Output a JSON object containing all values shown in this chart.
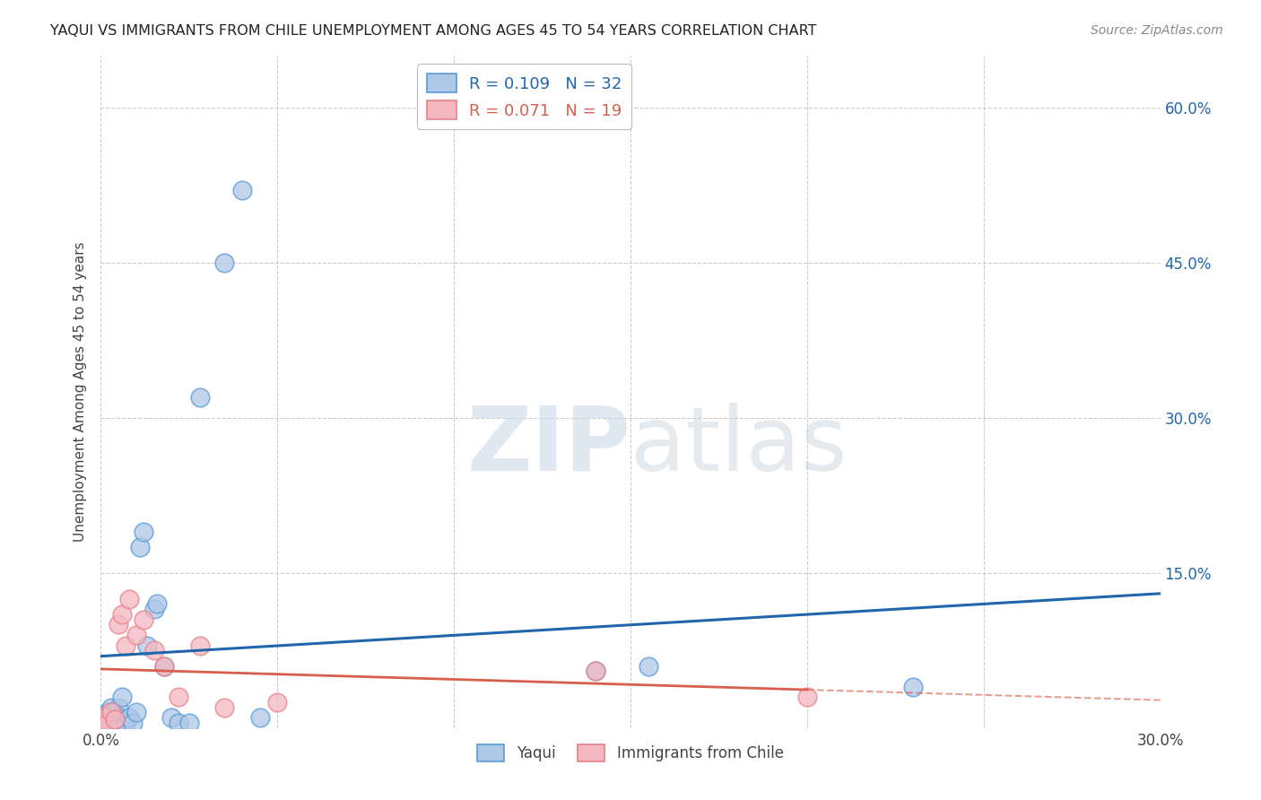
{
  "title": "YAQUI VS IMMIGRANTS FROM CHILE UNEMPLOYMENT AMONG AGES 45 TO 54 YEARS CORRELATION CHART",
  "source": "Source: ZipAtlas.com",
  "ylabel": "Unemployment Among Ages 45 to 54 years",
  "xlim": [
    0.0,
    0.3
  ],
  "ylim": [
    0.0,
    0.65
  ],
  "xtick_positions": [
    0.0,
    0.05,
    0.1,
    0.15,
    0.2,
    0.25,
    0.3
  ],
  "xticklabels": [
    "0.0%",
    "",
    "",
    "",
    "",
    "",
    "30.0%"
  ],
  "ytick_positions": [
    0.0,
    0.15,
    0.3,
    0.45,
    0.6
  ],
  "yticklabels": [
    "",
    "15.0%",
    "30.0%",
    "45.0%",
    "60.0%"
  ],
  "yaqui_R": 0.109,
  "yaqui_N": 32,
  "chile_R": 0.071,
  "chile_N": 19,
  "yaqui_color": "#aec8e8",
  "chile_color": "#f4b8c1",
  "yaqui_edge_color": "#5b9bd5",
  "chile_edge_color": "#e8828a",
  "yaqui_line_color": "#2166ac",
  "chile_line_color": "#d6604d",
  "watermark_color": "#d5e4f0",
  "yaqui_x": [
    0.0,
    0.001,
    0.001,
    0.002,
    0.002,
    0.003,
    0.003,
    0.004,
    0.004,
    0.005,
    0.005,
    0.006,
    0.007,
    0.008,
    0.009,
    0.01,
    0.011,
    0.012,
    0.013,
    0.015,
    0.016,
    0.018,
    0.02,
    0.022,
    0.025,
    0.028,
    0.035,
    0.04,
    0.045,
    0.14,
    0.155,
    0.23
  ],
  "yaqui_y": [
    0.005,
    0.01,
    0.005,
    0.015,
    0.008,
    0.02,
    0.01,
    0.005,
    0.015,
    0.02,
    0.01,
    0.03,
    0.005,
    0.01,
    0.005,
    0.015,
    0.175,
    0.19,
    0.08,
    0.115,
    0.12,
    0.06,
    0.01,
    0.005,
    0.005,
    0.32,
    0.45,
    0.52,
    0.01,
    0.055,
    0.06,
    0.04
  ],
  "chile_x": [
    0.0,
    0.001,
    0.002,
    0.003,
    0.004,
    0.005,
    0.006,
    0.007,
    0.008,
    0.01,
    0.012,
    0.015,
    0.018,
    0.022,
    0.028,
    0.035,
    0.05,
    0.14,
    0.2
  ],
  "chile_y": [
    0.005,
    0.01,
    0.005,
    0.015,
    0.008,
    0.1,
    0.11,
    0.08,
    0.125,
    0.09,
    0.105,
    0.075,
    0.06,
    0.03,
    0.08,
    0.02,
    0.025,
    0.055,
    0.03
  ]
}
